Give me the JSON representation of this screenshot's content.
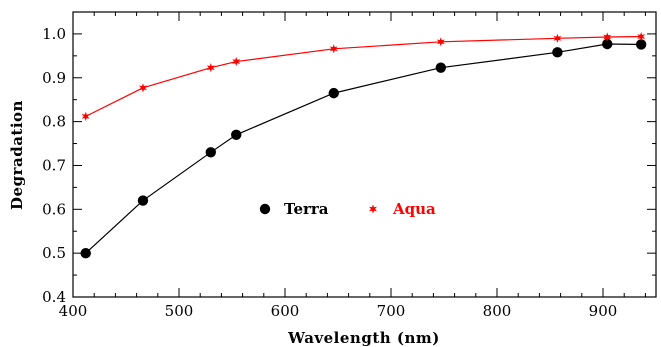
{
  "chart_data": {
    "type": "line",
    "xlabel": "Wavelength (nm)",
    "ylabel": "Degradation",
    "xlim": [
      400,
      950
    ],
    "ylim": [
      0.4,
      1.05
    ],
    "xticks": [
      400,
      500,
      600,
      700,
      800,
      900
    ],
    "yticks": [
      0.4,
      0.5,
      0.6,
      0.7,
      0.8,
      0.9,
      1.0
    ],
    "xtick_labels": [
      "400",
      "500",
      "600",
      "700",
      "800",
      "900"
    ],
    "ytick_labels": [
      "0.4",
      "0.5",
      "0.6",
      "0.7",
      "0.8",
      "0.9",
      "1.0"
    ],
    "grid": false,
    "legend_position": "center",
    "series": [
      {
        "name": "Terra",
        "color": "#000000",
        "marker": "circle",
        "x": [
          412,
          466,
          530,
          554,
          646,
          747,
          857,
          904,
          936
        ],
        "y": [
          0.5,
          0.62,
          0.73,
          0.77,
          0.865,
          0.923,
          0.958,
          0.977,
          0.976
        ]
      },
      {
        "name": "Aqua",
        "color": "#ff0000",
        "marker": "star",
        "x": [
          412,
          466,
          530,
          554,
          646,
          747,
          857,
          904,
          936
        ],
        "y": [
          0.812,
          0.877,
          0.923,
          0.937,
          0.966,
          0.982,
          0.99,
          0.993,
          0.994
        ]
      }
    ]
  }
}
